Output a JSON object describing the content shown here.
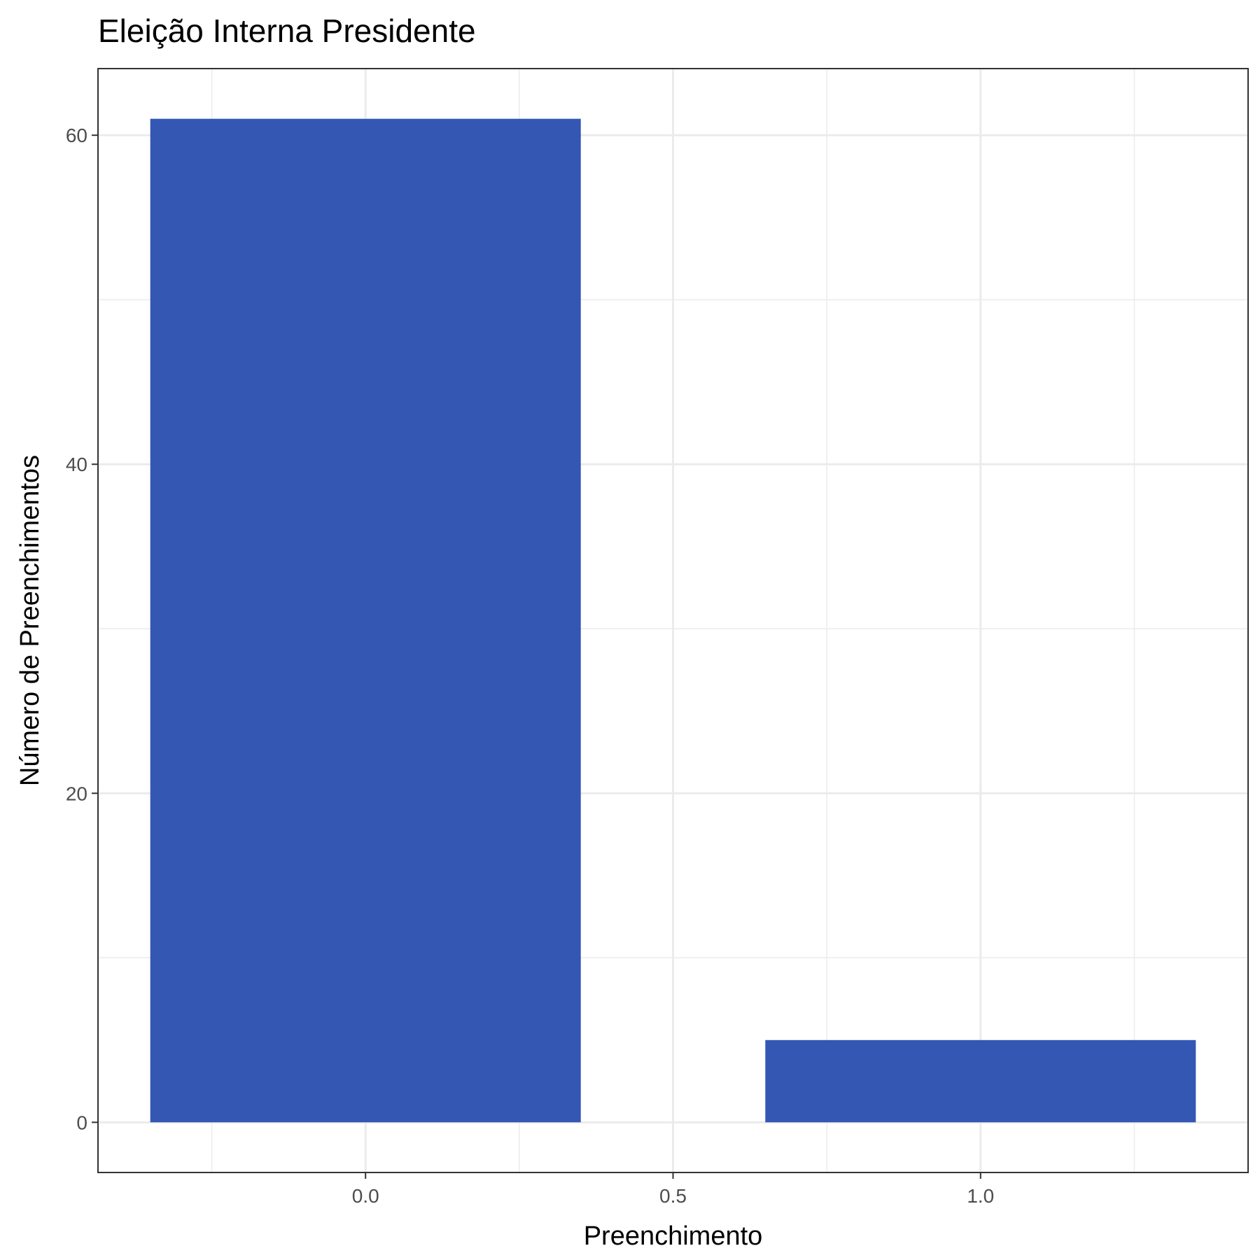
{
  "chart_data": {
    "type": "bar",
    "title": "Eleição Interna Presidente",
    "xlabel": "Preenchimento",
    "ylabel": "Número de Preenchimentos",
    "x": [
      0,
      1
    ],
    "values": [
      61,
      5
    ],
    "bar_width": 0.7,
    "xlim": [
      -0.435,
      1.435
    ],
    "ylim": [
      -3.05,
      64.05
    ],
    "x_ticks": [
      0.0,
      0.5,
      1.0
    ],
    "x_tick_labels": [
      "0.0",
      "0.5",
      "1.0"
    ],
    "x_minor_ticks": [
      -0.25,
      0.25,
      0.75,
      1.25
    ],
    "y_ticks": [
      0,
      20,
      40,
      60
    ],
    "y_tick_labels": [
      "0",
      "20",
      "40",
      "60"
    ],
    "y_minor_ticks": [
      10,
      30,
      50
    ],
    "grid": true,
    "bar_color": "#3457b4",
    "legend": "none"
  }
}
